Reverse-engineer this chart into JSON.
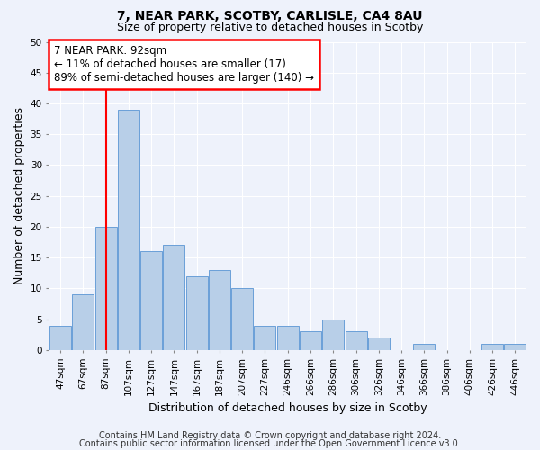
{
  "title": "7, NEAR PARK, SCOTBY, CARLISLE, CA4 8AU",
  "subtitle": "Size of property relative to detached houses in Scotby",
  "xlabel": "Distribution of detached houses by size in Scotby",
  "ylabel": "Number of detached properties",
  "categories": [
    "47sqm",
    "67sqm",
    "87sqm",
    "107sqm",
    "127sqm",
    "147sqm",
    "167sqm",
    "187sqm",
    "207sqm",
    "227sqm",
    "246sqm",
    "266sqm",
    "286sqm",
    "306sqm",
    "326sqm",
    "346sqm",
    "366sqm",
    "386sqm",
    "406sqm",
    "426sqm",
    "446sqm"
  ],
  "values": [
    4,
    9,
    20,
    39,
    16,
    17,
    12,
    13,
    10,
    4,
    4,
    3,
    5,
    3,
    2,
    0,
    1,
    0,
    0,
    1,
    1
  ],
  "bar_color": "#b8cfe8",
  "bar_edge_color": "#6a9fd8",
  "red_line_index": 2.5,
  "annotation_line1": "7 NEAR PARK: 92sqm",
  "annotation_line2": "← 11% of detached houses are smaller (17)",
  "annotation_line3": "89% of semi-detached houses are larger (140) →",
  "annotation_box_color": "white",
  "annotation_box_edge": "red",
  "ylim": [
    0,
    50
  ],
  "yticks": [
    0,
    5,
    10,
    15,
    20,
    25,
    30,
    35,
    40,
    45,
    50
  ],
  "footer_line1": "Contains HM Land Registry data © Crown copyright and database right 2024.",
  "footer_line2": "Contains public sector information licensed under the Open Government Licence v3.0.",
  "background_color": "#eef2fb",
  "grid_color": "#ffffff",
  "title_fontsize": 10,
  "subtitle_fontsize": 9,
  "axis_label_fontsize": 9,
  "tick_fontsize": 7.5,
  "annotation_fontsize": 8.5,
  "footer_fontsize": 7
}
